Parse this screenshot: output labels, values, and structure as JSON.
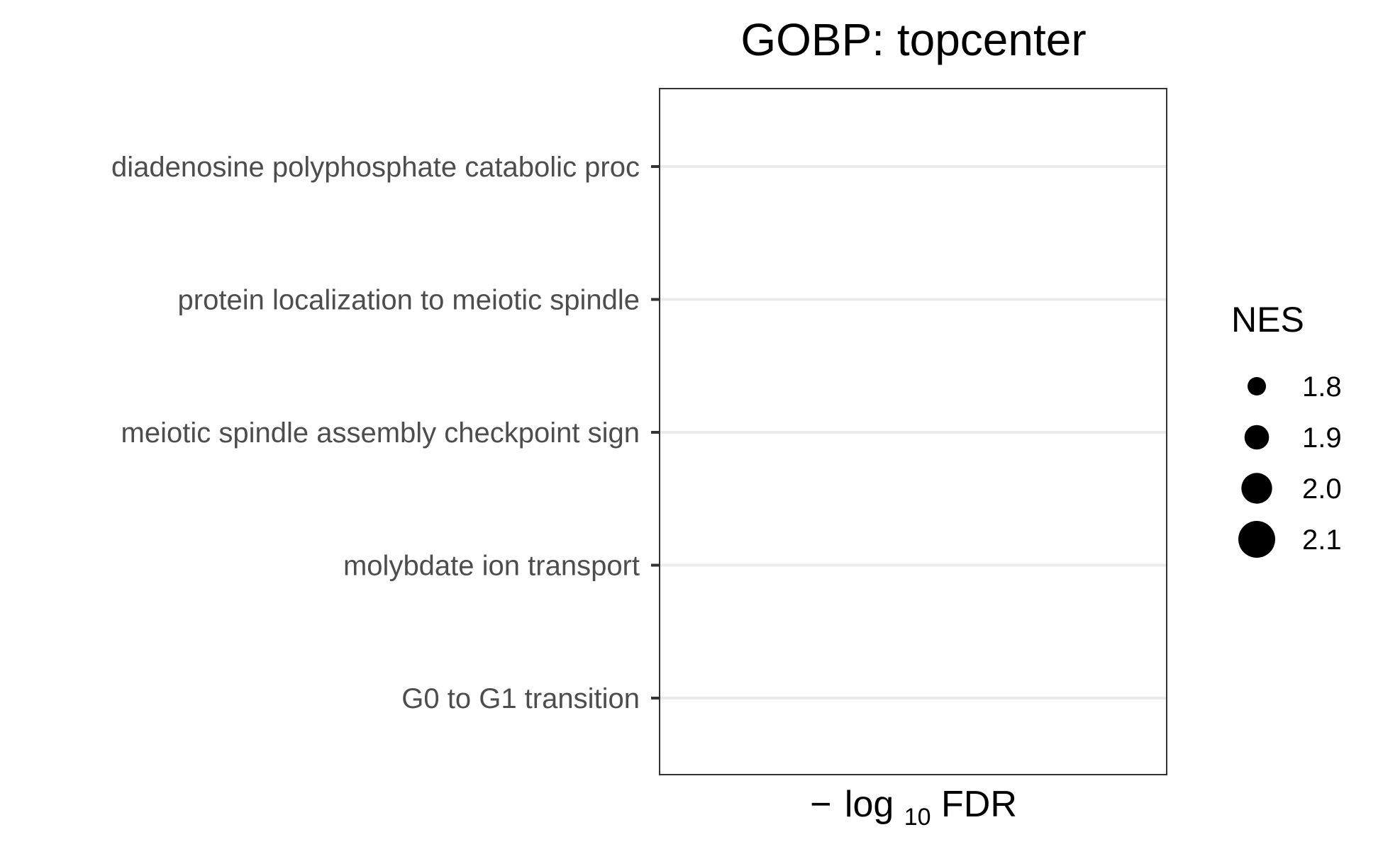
{
  "chart_data": {
    "type": "scatter",
    "title": "GOBP: topcenter",
    "xlabel": {
      "prefix": "−",
      "base": "log",
      "subscript": "10",
      "suffix": "FDR"
    },
    "ylabel": "",
    "categories": [
      "diadenosine polyphosphate catabolic proc",
      "protein localization to meiotic spindle ",
      "meiotic spindle assembly checkpoint sign",
      "molybdate ion transport",
      "G0 to G1 transition"
    ],
    "points": [],
    "grid": "horizontal major lines at each category",
    "legend": {
      "title": "NES",
      "placement": "right",
      "items": [
        {
          "label": "1.8",
          "value": 1.8
        },
        {
          "label": "1.9",
          "value": 1.9
        },
        {
          "label": "2.0",
          "value": 2.0
        },
        {
          "label": "2.1",
          "value": 2.1
        }
      ]
    },
    "colors": {
      "grid": "#ebebeb",
      "panel_border": "#333333",
      "tick_label": "#4d4d4d",
      "point": "#000000"
    }
  }
}
